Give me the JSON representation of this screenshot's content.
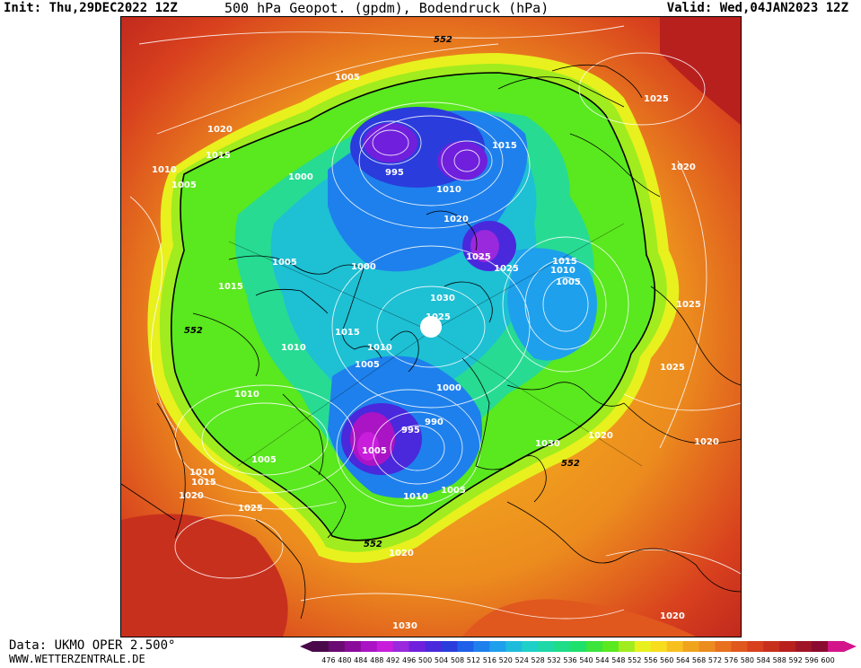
{
  "header": {
    "init": "Init: Thu,29DEC2022 12Z",
    "title": "500 hPa Geopot. (gpdm), Bodendruck (hPa)",
    "valid": "Valid: Wed,04JAN2023 12Z"
  },
  "footer": {
    "data_source": "Data: UKMO OPER 2.500°",
    "website": "WWW.WETTERZENTRALE.DE"
  },
  "colorbar": {
    "ticks": [
      "476",
      "480",
      "484",
      "488",
      "492",
      "496",
      "500",
      "504",
      "508",
      "512",
      "516",
      "520",
      "524",
      "528",
      "532",
      "536",
      "540",
      "544",
      "548",
      "552",
      "556",
      "560",
      "564",
      "568",
      "572",
      "576",
      "580",
      "584",
      "588",
      "592",
      "596",
      "600"
    ],
    "colors": [
      "#4a0a4a",
      "#6a0a72",
      "#8a0a9a",
      "#aa14c4",
      "#c81edc",
      "#9a28dc",
      "#7020dc",
      "#4a28dc",
      "#2a3cdc",
      "#1e60e8",
      "#1e80ec",
      "#1ea0ec",
      "#1ebcdc",
      "#1ed0c8",
      "#1ed8a8",
      "#1edc88",
      "#1ee06c",
      "#3ce43c",
      "#5ae81e",
      "#a0ec1e",
      "#e8f01e",
      "#f8dc1e",
      "#f8c01e",
      "#f0a41e",
      "#ec8c1e",
      "#e8701e",
      "#e0581e",
      "#d8401e",
      "#c8301e",
      "#b8201e",
      "#a01428",
      "#8a0a30",
      "#d4148a"
    ]
  },
  "map_labels": {
    "contour_552": "552",
    "pressure": [
      "1005",
      "1020",
      "1015",
      "1010",
      "1005",
      "1000",
      "995",
      "1015",
      "1010",
      "1020",
      "1025",
      "1025",
      "1025",
      "1020",
      "1005",
      "1000",
      "1030",
      "1025",
      "1015",
      "1010",
      "1005",
      "1015",
      "1015",
      "1010",
      "1005",
      "1025",
      "1025",
      "1010",
      "1010",
      "1005",
      "1000",
      "990",
      "995",
      "1005",
      "1030",
      "1020",
      "1020",
      "1010",
      "1015",
      "1020",
      "1005",
      "1010",
      "1025",
      "1020",
      "1030",
      "1020"
    ]
  }
}
